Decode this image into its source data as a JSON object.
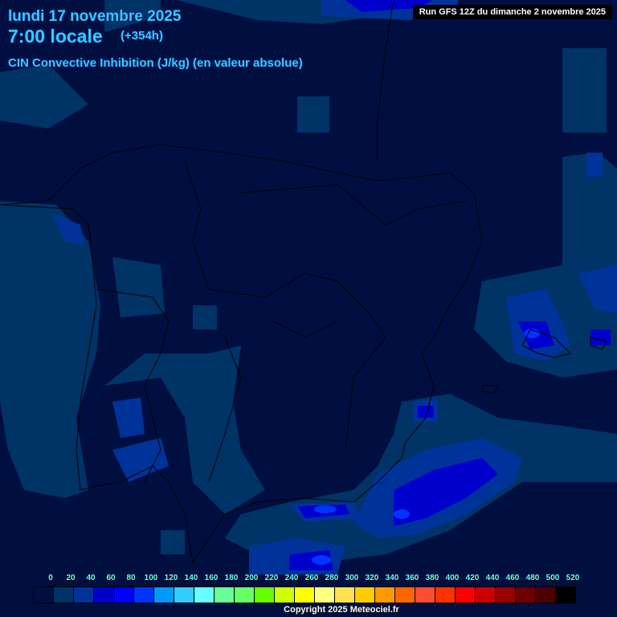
{
  "header": {
    "date": "lundi 17 novembre 2025",
    "time": "7:00 locale",
    "lead": "(+354h)",
    "parameter": "CIN Convective Inhibition (J/kg) (en valeur absolue)",
    "run": "Run GFS 12Z du dimanche 2 novembre 2025"
  },
  "legend": {
    "labels": [
      "0",
      "20",
      "40",
      "60",
      "80",
      "100",
      "120",
      "140",
      "160",
      "180",
      "200",
      "220",
      "240",
      "260",
      "280",
      "300",
      "320",
      "340",
      "360",
      "380",
      "400",
      "420",
      "440",
      "460",
      "480",
      "500",
      "520"
    ],
    "colors": [
      "#000f40",
      "#003366",
      "#003399",
      "#0000cc",
      "#0000ff",
      "#0033ff",
      "#0099ff",
      "#33ccff",
      "#66ffff",
      "#66ff99",
      "#66ff66",
      "#66ff00",
      "#ccff00",
      "#ffff00",
      "#ffff80",
      "#ffe14d",
      "#ffcc00",
      "#ff9900",
      "#ff6600",
      "#ff4d33",
      "#ff3300",
      "#ff0000",
      "#cc0000",
      "#990000",
      "#6e0000",
      "#4d0000",
      "#000000"
    ]
  },
  "footer": {
    "copyright": "Copyright 2025 Meteociel.fr"
  }
}
